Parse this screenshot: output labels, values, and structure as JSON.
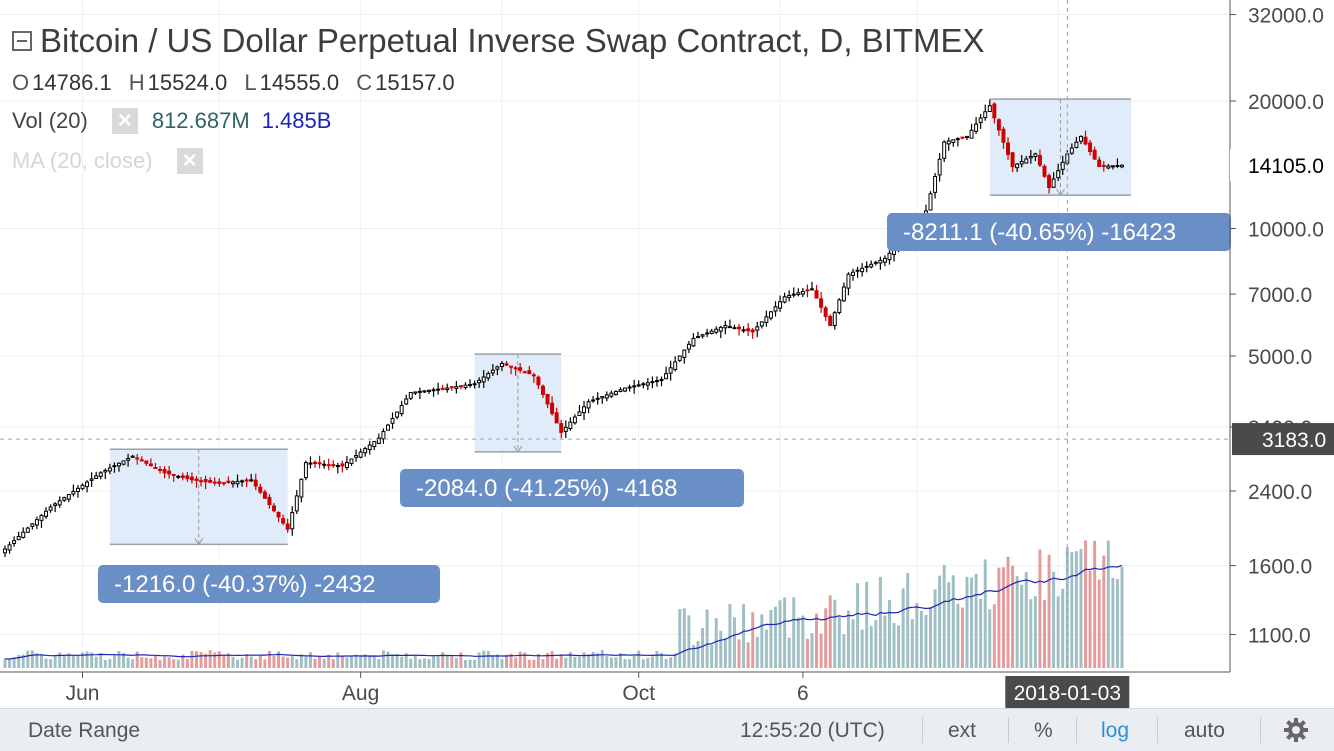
{
  "legend": {
    "title": "Bitcoin / US Dollar Perpetual Inverse Swap Contract, D, BITMEX",
    "ohlc": [
      {
        "k": "O",
        "v": "14786.1"
      },
      {
        "k": "H",
        "v": "15524.0"
      },
      {
        "k": "L",
        "v": "14555.0"
      },
      {
        "k": "C",
        "v": "15157.0"
      }
    ],
    "vol_label": "Vol (20)",
    "vol_value": "812.687M",
    "vol_ma_value": "1.485B",
    "ma_label": "MA (20, close)"
  },
  "price_axis": {
    "labels": [
      "32000.0",
      "20000.0",
      "10000.0",
      "7000.0",
      "5000.0",
      "3400.0",
      "2400.0",
      "1600.0",
      "1100.0"
    ],
    "current_price": "14105.0",
    "crosshair_price": "3183.0"
  },
  "time_axis": {
    "labels": [
      "Jun",
      "Aug",
      "Oct",
      "6"
    ],
    "crosshair_date": "2018-01-03"
  },
  "measurements": [
    {
      "label": "-1216.0 (-40.37%) -2432"
    },
    {
      "label": "-2084.0 (-41.25%) -4168"
    },
    {
      "label": "-8211.1 (-40.65%) -16423"
    }
  ],
  "bottom_bar": {
    "date_range": "Date Range",
    "time": "12:55:20 (UTC)",
    "ext": "ext",
    "percent": "%",
    "log": "log",
    "auto": "auto"
  },
  "colors": {
    "up_candle": "#000000",
    "down_candle": "#cc0000",
    "volume_up": "#9fbfc4",
    "volume_down": "#e39b9b",
    "volume_ma": "#1b25b8",
    "measure_fill": "#dbe9f8",
    "measure_label": "#6a8fc7",
    "price_label": "#000000",
    "crosshair_label": "#4a4a4a"
  },
  "chart_data": {
    "type": "candlestick",
    "title": "Bitcoin / US Dollar Perpetual Inverse Swap Contract, D, BITMEX",
    "scale": "log",
    "ylim": [
      900,
      34000
    ],
    "y_ticks": [
      1100,
      1600,
      2400,
      3400,
      5000,
      7000,
      10000,
      20000,
      32000
    ],
    "x_ticks": [
      "Jun",
      "Aug",
      "Oct",
      "6"
    ],
    "close_path": [
      [
        "2017-05-15",
        1750
      ],
      [
        "2017-05-25",
        2200
      ],
      [
        "2017-06-05",
        2650
      ],
      [
        "2017-06-12",
        2900
      ],
      [
        "2017-06-19",
        2650
      ],
      [
        "2017-06-25",
        2550
      ],
      [
        "2017-07-01",
        2500
      ],
      [
        "2017-07-08",
        2550
      ],
      [
        "2017-07-16",
        1950
      ],
      [
        "2017-07-20",
        2800
      ],
      [
        "2017-07-28",
        2750
      ],
      [
        "2017-08-05",
        3200
      ],
      [
        "2017-08-12",
        4100
      ],
      [
        "2017-08-20",
        4200
      ],
      [
        "2017-08-26",
        4300
      ],
      [
        "2017-09-01",
        4800
      ],
      [
        "2017-09-08",
        4500
      ],
      [
        "2017-09-14",
        3300
      ],
      [
        "2017-09-20",
        3900
      ],
      [
        "2017-09-28",
        4200
      ],
      [
        "2017-10-06",
        4400
      ],
      [
        "2017-10-13",
        5500
      ],
      [
        "2017-10-20",
        5900
      ],
      [
        "2017-10-26",
        5700
      ],
      [
        "2017-11-02",
        6900
      ],
      [
        "2017-11-08",
        7200
      ],
      [
        "2017-11-12",
        5900
      ],
      [
        "2017-11-16",
        7800
      ],
      [
        "2017-11-24",
        8500
      ],
      [
        "2017-11-28",
        9500
      ],
      [
        "2017-12-03",
        11000
      ],
      [
        "2017-12-07",
        16000
      ],
      [
        "2017-12-12",
        16500
      ],
      [
        "2017-12-17",
        19500
      ],
      [
        "2017-12-22",
        14000
      ],
      [
        "2017-12-27",
        15000
      ],
      [
        "2017-12-30",
        12500
      ],
      [
        "2018-01-03",
        15000
      ],
      [
        "2018-01-06",
        16500
      ],
      [
        "2018-01-10",
        14000
      ],
      [
        "2018-01-15",
        14105
      ]
    ],
    "last_candle": {
      "open": 14786.1,
      "high": 15524.0,
      "low": 14555.0,
      "close": 15157.0
    },
    "current_price": 14105.0,
    "crosshair": {
      "date": "2018-01-03",
      "price": 3183.0
    },
    "measurements": [
      {
        "change": -1216.0,
        "percent": -40.37,
        "ticks": -2432,
        "from": 3012,
        "to": 1796
      },
      {
        "change": -2084.0,
        "percent": -41.25,
        "ticks": -4168,
        "from": 5052,
        "to": 2968
      },
      {
        "change": -8211.1,
        "percent": -40.65,
        "ticks": -16423,
        "from": 20200,
        "to": 11989
      }
    ],
    "volume": {
      "label": "Vol (20)",
      "last": "812.687M",
      "ma": "1.485B"
    },
    "moving_average": {
      "label": "MA (20, close)"
    }
  }
}
